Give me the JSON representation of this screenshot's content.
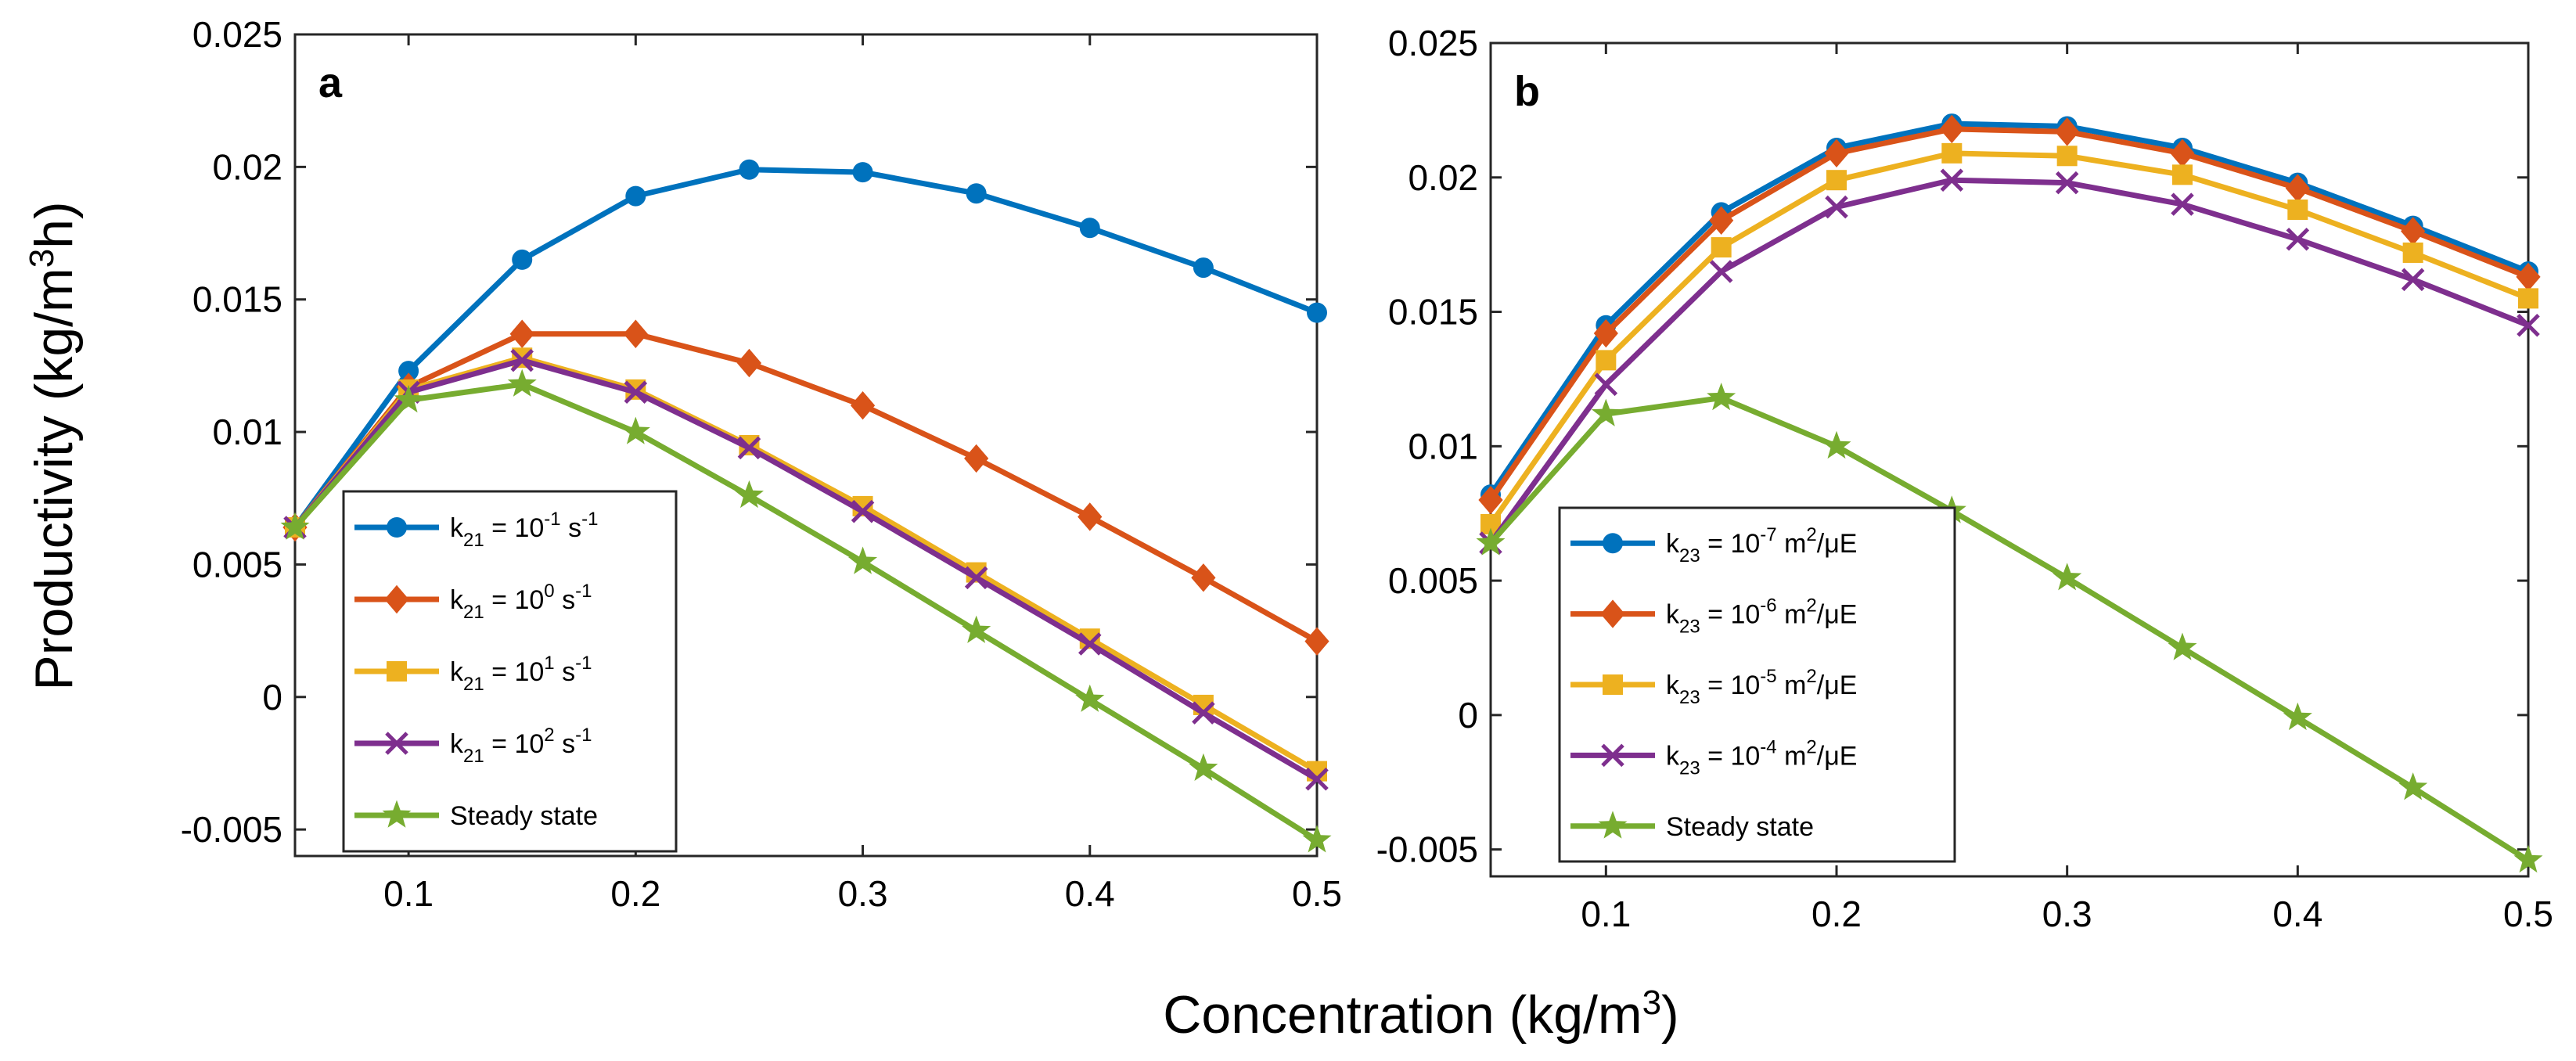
{
  "figure": {
    "ylabel_main": "Productivity (kg/m",
    "ylabel_sup": "3",
    "ylabel_end": "h)",
    "xlabel_main": "Concentration (kg/m",
    "xlabel_sup": "3",
    "xlabel_end": ")"
  },
  "chart_data": [
    {
      "type": "line",
      "panel": "a",
      "xlabel": "Concentration (kg/m3)",
      "ylabel": "Productivity (kg/m3h)",
      "xlim": [
        0.05,
        0.5
      ],
      "ylim": [
        -0.006,
        0.025
      ],
      "x_ticks": [
        0.1,
        0.2,
        0.3,
        0.4,
        0.5
      ],
      "x_tick_labels": [
        "0.1",
        "0.2",
        "0.3",
        "0.4",
        "0.5"
      ],
      "y_ticks": [
        -0.005,
        0,
        0.005,
        0.01,
        0.015,
        0.02,
        0.025
      ],
      "y_tick_labels": [
        "-0.005",
        "0",
        "0.005",
        "0.01",
        "0.015",
        "0.02",
        "0.025"
      ],
      "legend_position": "lower-left",
      "x": [
        0.05,
        0.1,
        0.15,
        0.2,
        0.25,
        0.3,
        0.35,
        0.4,
        0.45,
        0.5
      ],
      "series": [
        {
          "name": "k21 = 10^-1 s^-1",
          "legend": {
            "base": "k",
            "sub": "21",
            "mid": " = 10",
            "exp": "-1",
            "unit": " s",
            "unitexp": "-1"
          },
          "color": "#0072BD",
          "marker": "circle",
          "values": [
            0.0064,
            0.0123,
            0.0165,
            0.0189,
            0.0199,
            0.0198,
            0.019,
            0.0177,
            0.0162,
            0.0145
          ]
        },
        {
          "name": "k21 = 10^0 s^-1",
          "legend": {
            "base": "k",
            "sub": "21",
            "mid": " = 10",
            "exp": "0",
            "unit": " s",
            "unitexp": "-1"
          },
          "color": "#D95319",
          "marker": "diamond",
          "values": [
            0.0064,
            0.0117,
            0.0137,
            0.0137,
            0.0126,
            0.011,
            0.009,
            0.0068,
            0.0045,
            0.0021
          ]
        },
        {
          "name": "k21 = 10^1 s^-1",
          "legend": {
            "base": "k",
            "sub": "21",
            "mid": " = 10",
            "exp": "1",
            "unit": " s",
            "unitexp": "-1"
          },
          "color": "#EDB120",
          "marker": "square",
          "values": [
            0.0064,
            0.0116,
            0.0128,
            0.0116,
            0.0095,
            0.0072,
            0.0047,
            0.0022,
            -0.0003,
            -0.0028
          ]
        },
        {
          "name": "k21 = 10^2 s^-1",
          "legend": {
            "base": "k",
            "sub": "21",
            "mid": " = 10",
            "exp": "2",
            "unit": " s",
            "unitexp": "-1"
          },
          "color": "#7E2F8E",
          "marker": "x",
          "values": [
            0.0064,
            0.0115,
            0.0127,
            0.0115,
            0.0094,
            0.007,
            0.0045,
            0.002,
            -0.0006,
            -0.0031
          ]
        },
        {
          "name": "Steady state",
          "legend": {
            "text": "Steady state"
          },
          "color": "#77AC30",
          "marker": "star",
          "values": [
            0.0064,
            0.0112,
            0.0118,
            0.01,
            0.0076,
            0.0051,
            0.0025,
            -0.0001,
            -0.0027,
            -0.0054
          ]
        }
      ]
    },
    {
      "type": "line",
      "panel": "b",
      "xlabel": "Concentration (kg/m3)",
      "ylabel": "Productivity (kg/m3h)",
      "xlim": [
        0.05,
        0.5
      ],
      "ylim": [
        -0.006,
        0.025
      ],
      "x_ticks": [
        0.1,
        0.2,
        0.3,
        0.4,
        0.5
      ],
      "x_tick_labels": [
        "0.1",
        "0.2",
        "0.3",
        "0.4",
        "0.5"
      ],
      "y_ticks": [
        -0.005,
        0,
        0.005,
        0.01,
        0.015,
        0.02,
        0.025
      ],
      "y_tick_labels": [
        "-0.005",
        "0",
        "0.005",
        "0.01",
        "0.015",
        "0.02",
        "0.025"
      ],
      "legend_position": "lower-left",
      "x": [
        0.05,
        0.1,
        0.15,
        0.2,
        0.25,
        0.3,
        0.35,
        0.4,
        0.45,
        0.5
      ],
      "series": [
        {
          "name": "k23 = 10^-7 m2/μE",
          "legend": {
            "base": "k",
            "sub": "23",
            "mid": " = 10",
            "exp": "-7",
            "unit": " m",
            "unitexp": "2",
            "tail": "/μE"
          },
          "color": "#0072BD",
          "marker": "circle",
          "values": [
            0.0082,
            0.0145,
            0.0187,
            0.0211,
            0.022,
            0.0219,
            0.0211,
            0.0198,
            0.0182,
            0.0165
          ]
        },
        {
          "name": "k23 = 10^-6 m2/μE",
          "legend": {
            "base": "k",
            "sub": "23",
            "mid": " = 10",
            "exp": "-6",
            "unit": " m",
            "unitexp": "2",
            "tail": "/μE"
          },
          "color": "#D95319",
          "marker": "diamond",
          "values": [
            0.008,
            0.0142,
            0.0184,
            0.0209,
            0.0218,
            0.0217,
            0.0209,
            0.0196,
            0.018,
            0.0163
          ]
        },
        {
          "name": "k23 = 10^-5 m2/μE",
          "legend": {
            "base": "k",
            "sub": "23",
            "mid": " = 10",
            "exp": "-5",
            "unit": " m",
            "unitexp": "2",
            "tail": "/μE"
          },
          "color": "#EDB120",
          "marker": "square",
          "values": [
            0.0071,
            0.0132,
            0.0174,
            0.0199,
            0.0209,
            0.0208,
            0.0201,
            0.0188,
            0.0172,
            0.0155
          ]
        },
        {
          "name": "k23 = 10^-4 m2/μE",
          "legend": {
            "base": "k",
            "sub": "23",
            "mid": " = 10",
            "exp": "-4",
            "unit": " m",
            "unitexp": "2",
            "tail": "/μE"
          },
          "color": "#7E2F8E",
          "marker": "x",
          "values": [
            0.0064,
            0.0123,
            0.0165,
            0.0189,
            0.0199,
            0.0198,
            0.019,
            0.0177,
            0.0162,
            0.0145
          ]
        },
        {
          "name": "Steady state",
          "legend": {
            "text": "Steady state"
          },
          "color": "#77AC30",
          "marker": "star",
          "values": [
            0.0064,
            0.0112,
            0.0118,
            0.01,
            0.0076,
            0.0051,
            0.0025,
            -0.0001,
            -0.0027,
            -0.0054
          ]
        }
      ]
    }
  ]
}
